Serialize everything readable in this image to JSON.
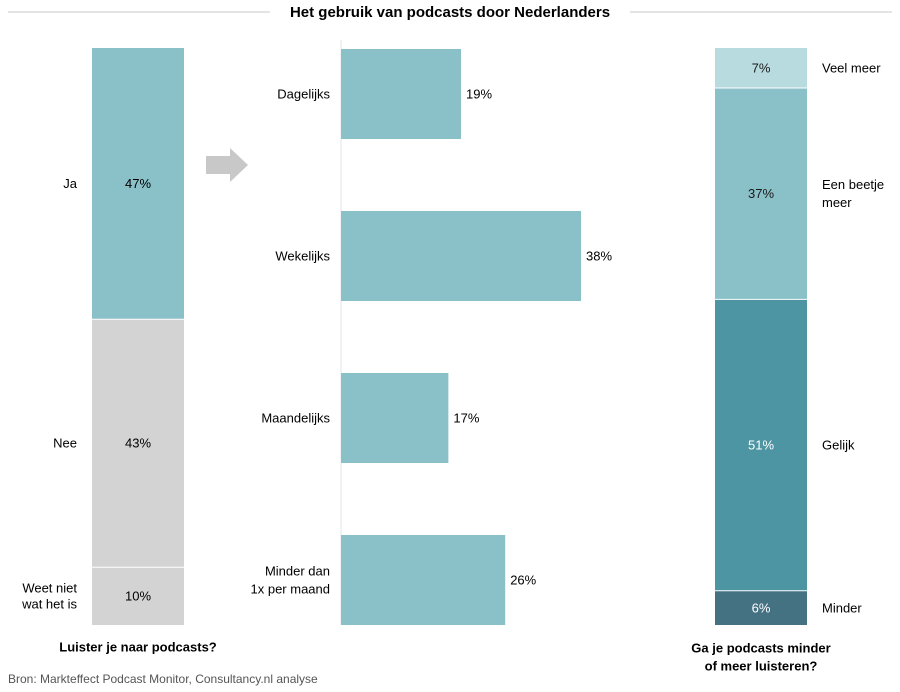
{
  "title": "Het gebruik van podcasts door Nederlanders",
  "source": "Bron: Markteffect Podcast Monitor, Consultancy.nl analyse",
  "colors": {
    "teal": "#8ac0c8",
    "grey": "#d3d3d3",
    "light_teal": "#b8dbe0",
    "dark_teal": "#4e95a4",
    "darkest_teal": "#447282",
    "arrow": "#c8c8c8",
    "rule": "#c8c8c8"
  },
  "chart_data": [
    {
      "type": "bar",
      "stacked": true,
      "orientation": "vertical",
      "caption": [
        "Luister je naar podcasts?"
      ],
      "categories": [
        "Ja",
        "Nee",
        "Weet niet wat het is"
      ],
      "label_lines": [
        [
          "Ja"
        ],
        [
          "Nee"
        ],
        [
          "Weet niet",
          "wat het is"
        ]
      ],
      "values": [
        47,
        43,
        10
      ],
      "value_labels": [
        "47%",
        "43%",
        "10%"
      ],
      "unit": "%"
    },
    {
      "type": "bar",
      "orientation": "horizontal",
      "categories": [
        "Dagelijks",
        "Wekelijks",
        "Maandelijks",
        "Minder dan 1x per maand"
      ],
      "label_lines": [
        [
          "Dagelijks"
        ],
        [
          "Wekelijks"
        ],
        [
          "Maandelijks"
        ],
        [
          "Minder dan",
          "1x per maand"
        ]
      ],
      "values": [
        19,
        38,
        17,
        26
      ],
      "value_labels": [
        "19%",
        "38%",
        "17%",
        "26%"
      ],
      "unit": "%"
    },
    {
      "type": "bar",
      "stacked": true,
      "orientation": "vertical",
      "caption": [
        "Ga je podcasts minder",
        "of meer luisteren?"
      ],
      "categories": [
        "Veel meer",
        "Een beetje meer",
        "Gelijk",
        "Minder"
      ],
      "label_lines": [
        [
          "Veel meer"
        ],
        [
          "Een beetje",
          "meer"
        ],
        [
          "Gelijk"
        ],
        [
          "Minder"
        ]
      ],
      "values": [
        7,
        37,
        51,
        6
      ],
      "value_labels": [
        "7%",
        "37%",
        "51%",
        "6%"
      ],
      "unit": "%"
    }
  ]
}
